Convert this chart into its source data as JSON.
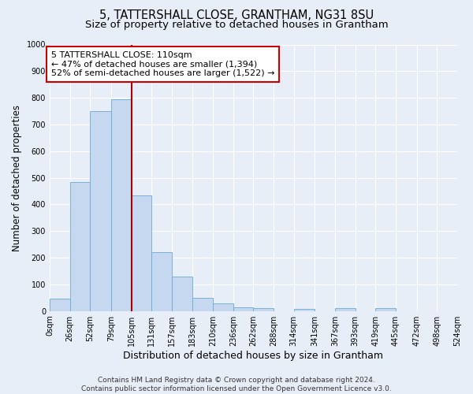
{
  "title": "5, TATTERSHALL CLOSE, GRANTHAM, NG31 8SU",
  "subtitle": "Size of property relative to detached houses in Grantham",
  "xlabel": "Distribution of detached houses by size in Grantham",
  "ylabel": "Number of detached properties",
  "bin_edges": [
    0,
    26,
    52,
    79,
    105,
    131,
    157,
    183,
    210,
    236,
    262,
    288,
    314,
    341,
    367,
    393,
    419,
    445,
    472,
    498,
    524
  ],
  "bar_heights": [
    45,
    485,
    750,
    795,
    435,
    220,
    128,
    50,
    28,
    15,
    10,
    0,
    8,
    0,
    10,
    0,
    10,
    0,
    0,
    0
  ],
  "bar_color": "#c5d8f0",
  "bar_edge_color": "#6aabd2",
  "property_line_x": 105,
  "property_line_color": "#aa0000",
  "annotation_text": "5 TATTERSHALL CLOSE: 110sqm\n← 47% of detached houses are smaller (1,394)\n52% of semi-detached houses are larger (1,522) →",
  "annotation_box_color": "white",
  "annotation_box_edge_color": "#cc0000",
  "ylim": [
    0,
    1000
  ],
  "tick_labels": [
    "0sqm",
    "26sqm",
    "52sqm",
    "79sqm",
    "105sqm",
    "131sqm",
    "157sqm",
    "183sqm",
    "210sqm",
    "236sqm",
    "262sqm",
    "288sqm",
    "314sqm",
    "341sqm",
    "367sqm",
    "393sqm",
    "419sqm",
    "445sqm",
    "472sqm",
    "498sqm",
    "524sqm"
  ],
  "footer_text": "Contains HM Land Registry data © Crown copyright and database right 2024.\nContains public sector information licensed under the Open Government Licence v3.0.",
  "bg_color": "#e8eef8",
  "grid_color": "#ffffff",
  "title_fontsize": 10.5,
  "subtitle_fontsize": 9.5,
  "ylabel_fontsize": 8.5,
  "xlabel_fontsize": 9,
  "tick_fontsize": 7,
  "footer_fontsize": 6.5,
  "annot_fontsize": 8
}
